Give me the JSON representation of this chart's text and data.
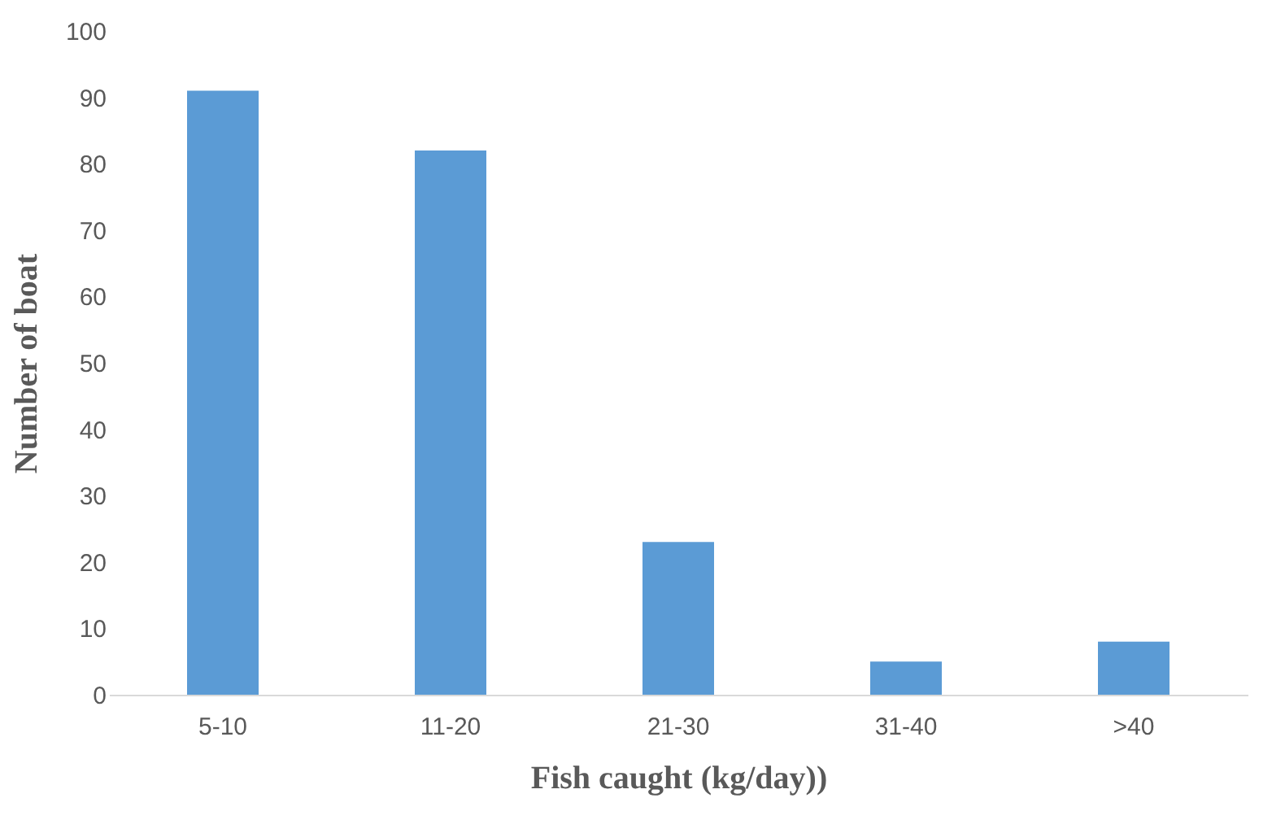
{
  "chart_data": {
    "type": "bar",
    "xlabel": "Fish caught (kg/day))",
    "ylabel": "Number of boat",
    "categories": [
      "5-10",
      "11-20",
      "21-30",
      "31-40",
      ">40"
    ],
    "values": [
      91,
      82,
      23,
      5,
      8
    ],
    "color": "#5b9bd5",
    "ylim": [
      0,
      100
    ],
    "yticks": [
      0,
      10,
      20,
      30,
      40,
      50,
      60,
      70,
      80,
      90,
      100
    ],
    "grid": false
  }
}
